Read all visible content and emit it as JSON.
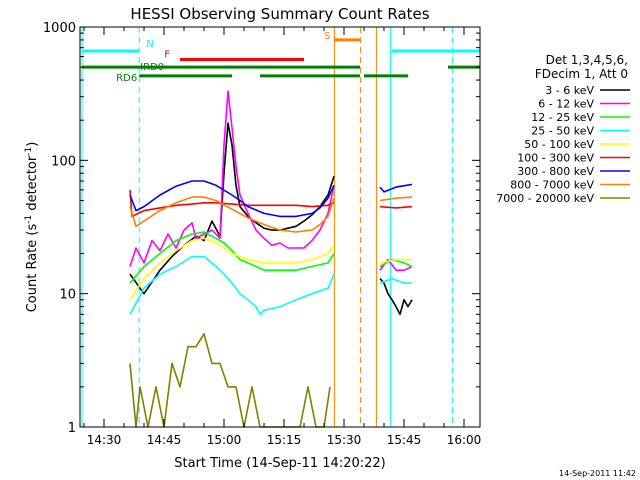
{
  "chart_data": {
    "type": "line",
    "title": "HESSI Observing Summary Count Rates",
    "xlabel": "Start Time (14-Sep-11 14:20:22)",
    "ylabel_main": "Count Rate (s",
    "ylabel_sup1": "-1",
    "ylabel_mid": " detector",
    "ylabel_sup2": "-1",
    "ylabel_end": ")",
    "x_unit": "minutes after 14:20",
    "xlim": [
      4,
      104
    ],
    "ylim": [
      1,
      1000
    ],
    "y_log": true,
    "x_ticks": [
      {
        "m": 10,
        "label": "14:30"
      },
      {
        "m": 25,
        "label": "14:45"
      },
      {
        "m": 40,
        "label": "15:00"
      },
      {
        "m": 55,
        "label": "15:15"
      },
      {
        "m": 70,
        "label": "15:30"
      },
      {
        "m": 85,
        "label": "15:45"
      },
      {
        "m": 100,
        "label": "16:00"
      }
    ],
    "y_ticks": [
      {
        "v": 1,
        "label": "1"
      },
      {
        "v": 10,
        "label": "10"
      },
      {
        "v": 100,
        "label": "100"
      },
      {
        "v": 1000,
        "label": "1000"
      }
    ],
    "legend_header": [
      "Det 1,3,4,5,6,",
      "FDecim 1, Att 0"
    ],
    "timestamp": "14-Sep-2011 11:42",
    "vlines": [
      {
        "m": 4.5,
        "color": "#00ffff",
        "style": "solid"
      },
      {
        "m": 18.8,
        "color": "#00ffff",
        "style": "dashed"
      },
      {
        "m": 67.6,
        "color": "#ff8000",
        "style": "solid"
      },
      {
        "m": 74.1,
        "color": "#ff8000",
        "style": "dashed"
      },
      {
        "m": 78.1,
        "color": "#ff8000",
        "style": "solid"
      },
      {
        "m": 81.6,
        "color": "#00ffff",
        "style": "solid"
      },
      {
        "m": 97.1,
        "color": "#00ffff",
        "style": "dashed"
      }
    ],
    "flags": [
      {
        "label": "N",
        "color": "#00ffff",
        "lvl": 660,
        "segments": [
          [
            4.5,
            18.8
          ],
          [
            82,
            104
          ]
        ]
      },
      {
        "label": "F",
        "color": "#ff0000",
        "lvl": 570,
        "segments": [
          [
            29,
            60
          ]
        ]
      },
      {
        "label": "S",
        "color": "#ff8000",
        "lvl": 800,
        "segments": [
          [
            67.6,
            74.1
          ]
        ]
      },
      {
        "label": "IRD0",
        "color": "#008000",
        "lvl": 500,
        "segments": [
          [
            4.5,
            74
          ],
          [
            96,
            104
          ]
        ]
      },
      {
        "label": "RD6",
        "color": "#008000",
        "lvl": 430,
        "segments": [
          [
            18.8,
            42
          ],
          [
            49,
            74
          ],
          [
            75,
            86
          ]
        ]
      }
    ],
    "series": [
      {
        "name": "3 - 6 keV",
        "color": "#000000",
        "x": [
          16.5,
          20,
          24,
          27,
          30,
          33,
          35,
          37,
          39,
          40,
          41,
          42,
          43,
          44,
          46,
          48,
          50,
          52,
          54,
          56,
          58,
          60,
          62,
          64,
          66,
          67.5,
          79,
          80,
          81,
          82,
          83,
          84,
          85,
          86,
          87
        ],
        "y": [
          14,
          10,
          15,
          19,
          23,
          27,
          25,
          35,
          27,
          80,
          190,
          130,
          65,
          45,
          38,
          34,
          31,
          30,
          30,
          31,
          32,
          35,
          39,
          45,
          55,
          76,
          13,
          12,
          10,
          9,
          8,
          7,
          9,
          8,
          9
        ]
      },
      {
        "name": "6 - 12 keV",
        "color": "#ff00ff",
        "x": [
          16.5,
          18,
          20,
          22,
          24,
          26,
          28,
          30,
          32,
          33,
          35,
          37,
          39,
          40,
          41,
          42,
          43,
          44,
          46,
          48,
          50,
          52,
          54,
          56,
          58,
          60,
          62,
          64,
          66,
          67.5,
          79,
          81,
          83,
          85,
          87
        ],
        "y": [
          16,
          22,
          17,
          25,
          21,
          28,
          22,
          30,
          34,
          26,
          28,
          30,
          26,
          130,
          330,
          175,
          90,
          55,
          40,
          30,
          26,
          23,
          24,
          22,
          22,
          22,
          25,
          30,
          40,
          65,
          15,
          18,
          15,
          15,
          16
        ]
      },
      {
        "name": "12 - 25 keV",
        "color": "#00ff00",
        "x": [
          16.5,
          20,
          24,
          28,
          32,
          35,
          38,
          40,
          42,
          44,
          46,
          48,
          50,
          54,
          58,
          62,
          66,
          67.5,
          79,
          82,
          85,
          87
        ],
        "y": [
          12,
          16,
          20,
          25,
          28,
          29,
          26,
          24,
          21,
          18,
          17,
          16,
          15,
          15,
          15,
          16,
          17,
          20,
          16,
          18,
          17,
          16
        ]
      },
      {
        "name": "25 - 50 keV",
        "color": "#00ffff",
        "x": [
          16.5,
          20,
          24,
          28,
          32,
          35,
          38,
          40,
          42,
          44,
          46,
          48,
          49,
          50,
          54,
          58,
          62,
          66,
          67.5,
          79,
          82,
          85,
          87
        ],
        "y": [
          7,
          11,
          14,
          16,
          19,
          19,
          16,
          14,
          12,
          10,
          9,
          8,
          7,
          7.5,
          8,
          9,
          10,
          11,
          14,
          12,
          13,
          12,
          12
        ]
      },
      {
        "name": "50 - 100 keV",
        "color": "#ffff00",
        "x": [
          16.5,
          20,
          24,
          28,
          32,
          35,
          38,
          42,
          46,
          50,
          54,
          58,
          62,
          66,
          67.5,
          79,
          83,
          87
        ],
        "y": [
          9,
          13,
          17,
          21,
          25,
          26,
          24,
          20,
          18,
          17,
          17,
          17,
          18,
          20,
          23,
          17,
          18,
          18
        ]
      },
      {
        "name": "100 - 300 keV",
        "color": "#ff0000",
        "x": [
          16.5,
          17,
          20,
          24,
          28,
          32,
          35,
          38,
          42,
          46,
          50,
          54,
          58,
          62,
          66,
          67.5,
          79,
          83,
          87
        ],
        "y": [
          60,
          38,
          42,
          44,
          46,
          47,
          48,
          48,
          47,
          46,
          46,
          46,
          46,
          45,
          46,
          48,
          45,
          44,
          45
        ]
      },
      {
        "name": "300 - 800 keV",
        "color": "#0000ff",
        "x": [
          16.5,
          18,
          20,
          24,
          28,
          32,
          35,
          38,
          42,
          44,
          46,
          50,
          54,
          58,
          62,
          64,
          66,
          67.5,
          79,
          80,
          83,
          87
        ],
        "y": [
          55,
          42,
          45,
          55,
          64,
          70,
          70,
          65,
          55,
          50,
          45,
          40,
          38,
          38,
          40,
          44,
          52,
          65,
          63,
          58,
          63,
          66
        ]
      },
      {
        "name": "800 - 7000 keV",
        "color": "#ff8000",
        "x": [
          16.5,
          18,
          20,
          24,
          28,
          32,
          35,
          38,
          42,
          46,
          50,
          54,
          58,
          62,
          64,
          66,
          67.5,
          79,
          83,
          87
        ],
        "y": [
          45,
          32,
          35,
          42,
          48,
          53,
          53,
          50,
          43,
          37,
          33,
          30,
          29,
          30,
          33,
          38,
          52,
          50,
          52,
          53
        ]
      },
      {
        "name": "7000 - 20000 keV",
        "color": "#808000",
        "x": [
          16.5,
          18,
          19,
          21,
          23,
          25,
          27,
          29,
          31,
          33,
          35,
          37,
          39,
          41,
          43,
          45,
          47,
          49,
          51,
          53,
          55,
          57,
          59,
          61,
          63,
          65,
          66.5
        ],
        "y": [
          3,
          1,
          2,
          1,
          2,
          1,
          3,
          2,
          4,
          4,
          5,
          3,
          3,
          2,
          2,
          1,
          2,
          1,
          1,
          1,
          1,
          1,
          1,
          2,
          1,
          1,
          2
        ]
      }
    ]
  }
}
